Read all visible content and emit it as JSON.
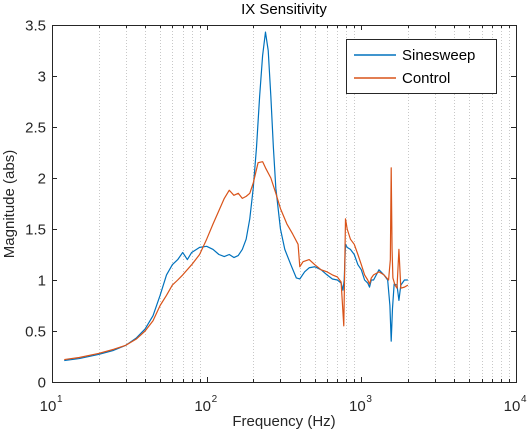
{
  "chart_data": {
    "type": "line",
    "title": "IX Sensitivity",
    "xlabel": "Frequency  (Hz)",
    "ylabel": "Magnitude (abs)",
    "xscale": "log",
    "xlim": [
      10,
      10000
    ],
    "ylim": [
      0,
      3.5
    ],
    "x_ticks": [
      {
        "base": "10",
        "exp": "1",
        "value": 10
      },
      {
        "base": "10",
        "exp": "2",
        "value": 100
      },
      {
        "base": "10",
        "exp": "3",
        "value": 1000
      },
      {
        "base": "10",
        "exp": "4",
        "value": 10000
      }
    ],
    "y_ticks": [
      "0",
      "0.5",
      "1",
      "1.5",
      "2",
      "2.5",
      "3",
      "3.5"
    ],
    "grid": "x minor dotted",
    "legend_position": "top-right",
    "series": [
      {
        "name": "Sinesweep",
        "color": "#0072BD",
        "points": [
          [
            12,
            0.21
          ],
          [
            15,
            0.23
          ],
          [
            20,
            0.27
          ],
          [
            25,
            0.31
          ],
          [
            30,
            0.36
          ],
          [
            35,
            0.43
          ],
          [
            40,
            0.52
          ],
          [
            45,
            0.65
          ],
          [
            50,
            0.85
          ],
          [
            55,
            1.05
          ],
          [
            60,
            1.15
          ],
          [
            65,
            1.2
          ],
          [
            70,
            1.27
          ],
          [
            75,
            1.2
          ],
          [
            80,
            1.27
          ],
          [
            90,
            1.32
          ],
          [
            100,
            1.33
          ],
          [
            110,
            1.3
          ],
          [
            120,
            1.25
          ],
          [
            130,
            1.23
          ],
          [
            140,
            1.25
          ],
          [
            150,
            1.22
          ],
          [
            160,
            1.24
          ],
          [
            170,
            1.3
          ],
          [
            180,
            1.4
          ],
          [
            190,
            1.6
          ],
          [
            200,
            1.9
          ],
          [
            210,
            2.3
          ],
          [
            220,
            2.8
          ],
          [
            230,
            3.2
          ],
          [
            240,
            3.43
          ],
          [
            250,
            3.25
          ],
          [
            260,
            2.8
          ],
          [
            270,
            2.3
          ],
          [
            280,
            1.9
          ],
          [
            300,
            1.5
          ],
          [
            320,
            1.3
          ],
          [
            350,
            1.15
          ],
          [
            380,
            1.02
          ],
          [
            400,
            1.01
          ],
          [
            430,
            1.08
          ],
          [
            460,
            1.12
          ],
          [
            500,
            1.13
          ],
          [
            550,
            1.1
          ],
          [
            600,
            1.05
          ],
          [
            650,
            1.01
          ],
          [
            700,
            1.0
          ],
          [
            740,
            0.97
          ],
          [
            760,
            0.9
          ],
          [
            775,
            1.0
          ],
          [
            790,
            1.35
          ],
          [
            810,
            1.32
          ],
          [
            850,
            1.3
          ],
          [
            900,
            1.25
          ],
          [
            950,
            1.15
          ],
          [
            1000,
            1.1
          ],
          [
            1050,
            1.0
          ],
          [
            1100,
            0.97
          ],
          [
            1130,
            0.93
          ],
          [
            1160,
            1.0
          ],
          [
            1200,
            1.0
          ],
          [
            1300,
            1.1
          ],
          [
            1400,
            1.05
          ],
          [
            1480,
            1.0
          ],
          [
            1530,
            0.75
          ],
          [
            1560,
            0.4
          ],
          [
            1590,
            0.72
          ],
          [
            1630,
            0.96
          ],
          [
            1700,
            0.95
          ],
          [
            1750,
            0.8
          ],
          [
            1800,
            0.95
          ],
          [
            1900,
            1.0
          ],
          [
            2000,
            1.0
          ]
        ]
      },
      {
        "name": "Control",
        "color": "#D95319",
        "points": [
          [
            12,
            0.22
          ],
          [
            15,
            0.24
          ],
          [
            20,
            0.28
          ],
          [
            25,
            0.32
          ],
          [
            30,
            0.36
          ],
          [
            35,
            0.42
          ],
          [
            40,
            0.5
          ],
          [
            45,
            0.6
          ],
          [
            50,
            0.75
          ],
          [
            55,
            0.85
          ],
          [
            60,
            0.95
          ],
          [
            65,
            1.0
          ],
          [
            70,
            1.05
          ],
          [
            80,
            1.15
          ],
          [
            90,
            1.25
          ],
          [
            100,
            1.4
          ],
          [
            110,
            1.55
          ],
          [
            120,
            1.68
          ],
          [
            130,
            1.8
          ],
          [
            140,
            1.88
          ],
          [
            150,
            1.83
          ],
          [
            160,
            1.85
          ],
          [
            170,
            1.8
          ],
          [
            180,
            1.82
          ],
          [
            190,
            1.85
          ],
          [
            200,
            1.95
          ],
          [
            215,
            2.15
          ],
          [
            230,
            2.16
          ],
          [
            240,
            2.1
          ],
          [
            260,
            2.0
          ],
          [
            280,
            1.85
          ],
          [
            300,
            1.7
          ],
          [
            330,
            1.55
          ],
          [
            360,
            1.45
          ],
          [
            390,
            1.35
          ],
          [
            400,
            1.13
          ],
          [
            420,
            1.18
          ],
          [
            460,
            1.2
          ],
          [
            500,
            1.15
          ],
          [
            550,
            1.1
          ],
          [
            600,
            1.08
          ],
          [
            650,
            1.05
          ],
          [
            700,
            1.03
          ],
          [
            740,
            0.98
          ],
          [
            770,
            0.55
          ],
          [
            790,
            1.6
          ],
          [
            810,
            1.5
          ],
          [
            850,
            1.4
          ],
          [
            900,
            1.35
          ],
          [
            950,
            1.25
          ],
          [
            1000,
            1.15
          ],
          [
            1050,
            1.05
          ],
          [
            1100,
            1.0
          ],
          [
            1130,
            0.96
          ],
          [
            1160,
            1.02
          ],
          [
            1200,
            1.05
          ],
          [
            1300,
            1.08
          ],
          [
            1400,
            1.05
          ],
          [
            1500,
            1.0
          ],
          [
            1540,
            1.2
          ],
          [
            1560,
            2.1
          ],
          [
            1580,
            1.3
          ],
          [
            1600,
            1.02
          ],
          [
            1650,
            0.95
          ],
          [
            1700,
            0.92
          ],
          [
            1750,
            1.3
          ],
          [
            1800,
            0.92
          ],
          [
            1900,
            0.93
          ],
          [
            2000,
            0.95
          ]
        ]
      }
    ]
  }
}
